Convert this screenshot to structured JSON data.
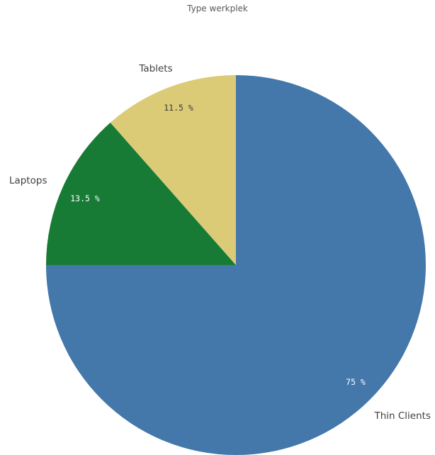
{
  "chart_data": {
    "type": "pie",
    "title": "Type werkplek",
    "start": "12 o'clock",
    "direction": "clockwise",
    "slices": [
      {
        "label": "Thin Clients",
        "value": 75,
        "value_label": "75 %",
        "color": "#4477aa",
        "value_label_color": "#ffffff"
      },
      {
        "label": "Laptops",
        "value": 13.5,
        "value_label": "13.5 %",
        "color": "#177b36",
        "value_label_color": "#ffffff"
      },
      {
        "label": "Tablets",
        "value": 11.5,
        "value_label": "11.5 %",
        "color": "#dbcb76",
        "value_label_color": "#3a3a3a"
      }
    ]
  }
}
